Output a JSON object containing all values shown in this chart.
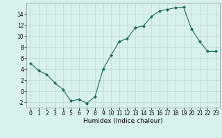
{
  "x": [
    0,
    1,
    2,
    3,
    4,
    5,
    6,
    7,
    8,
    9,
    10,
    11,
    12,
    13,
    14,
    15,
    16,
    17,
    18,
    19,
    20,
    21,
    22,
    23
  ],
  "y": [
    5,
    3.7,
    3,
    1.5,
    0.3,
    -1.8,
    -1.5,
    -2.2,
    -1.0,
    4.0,
    6.5,
    9.0,
    9.5,
    11.5,
    11.8,
    13.5,
    14.5,
    14.8,
    15.1,
    15.2,
    11.2,
    9.0,
    7.2,
    7.2
  ],
  "xlabel": "Humidex (Indice chaleur)",
  "xlim": [
    -0.5,
    23.5
  ],
  "ylim": [
    -3,
    16
  ],
  "yticks": [
    -2,
    0,
    2,
    4,
    6,
    8,
    10,
    12,
    14
  ],
  "xticks": [
    0,
    1,
    2,
    3,
    4,
    5,
    6,
    7,
    8,
    9,
    10,
    11,
    12,
    13,
    14,
    15,
    16,
    17,
    18,
    19,
    20,
    21,
    22,
    23
  ],
  "line_color": "#1a6b5a",
  "marker": "D",
  "marker_size": 2.0,
  "bg_color": "#d8f0ee",
  "grid_color": "#c0d8d4",
  "tick_label_fontsize": 5.5,
  "xlabel_fontsize": 6.5
}
